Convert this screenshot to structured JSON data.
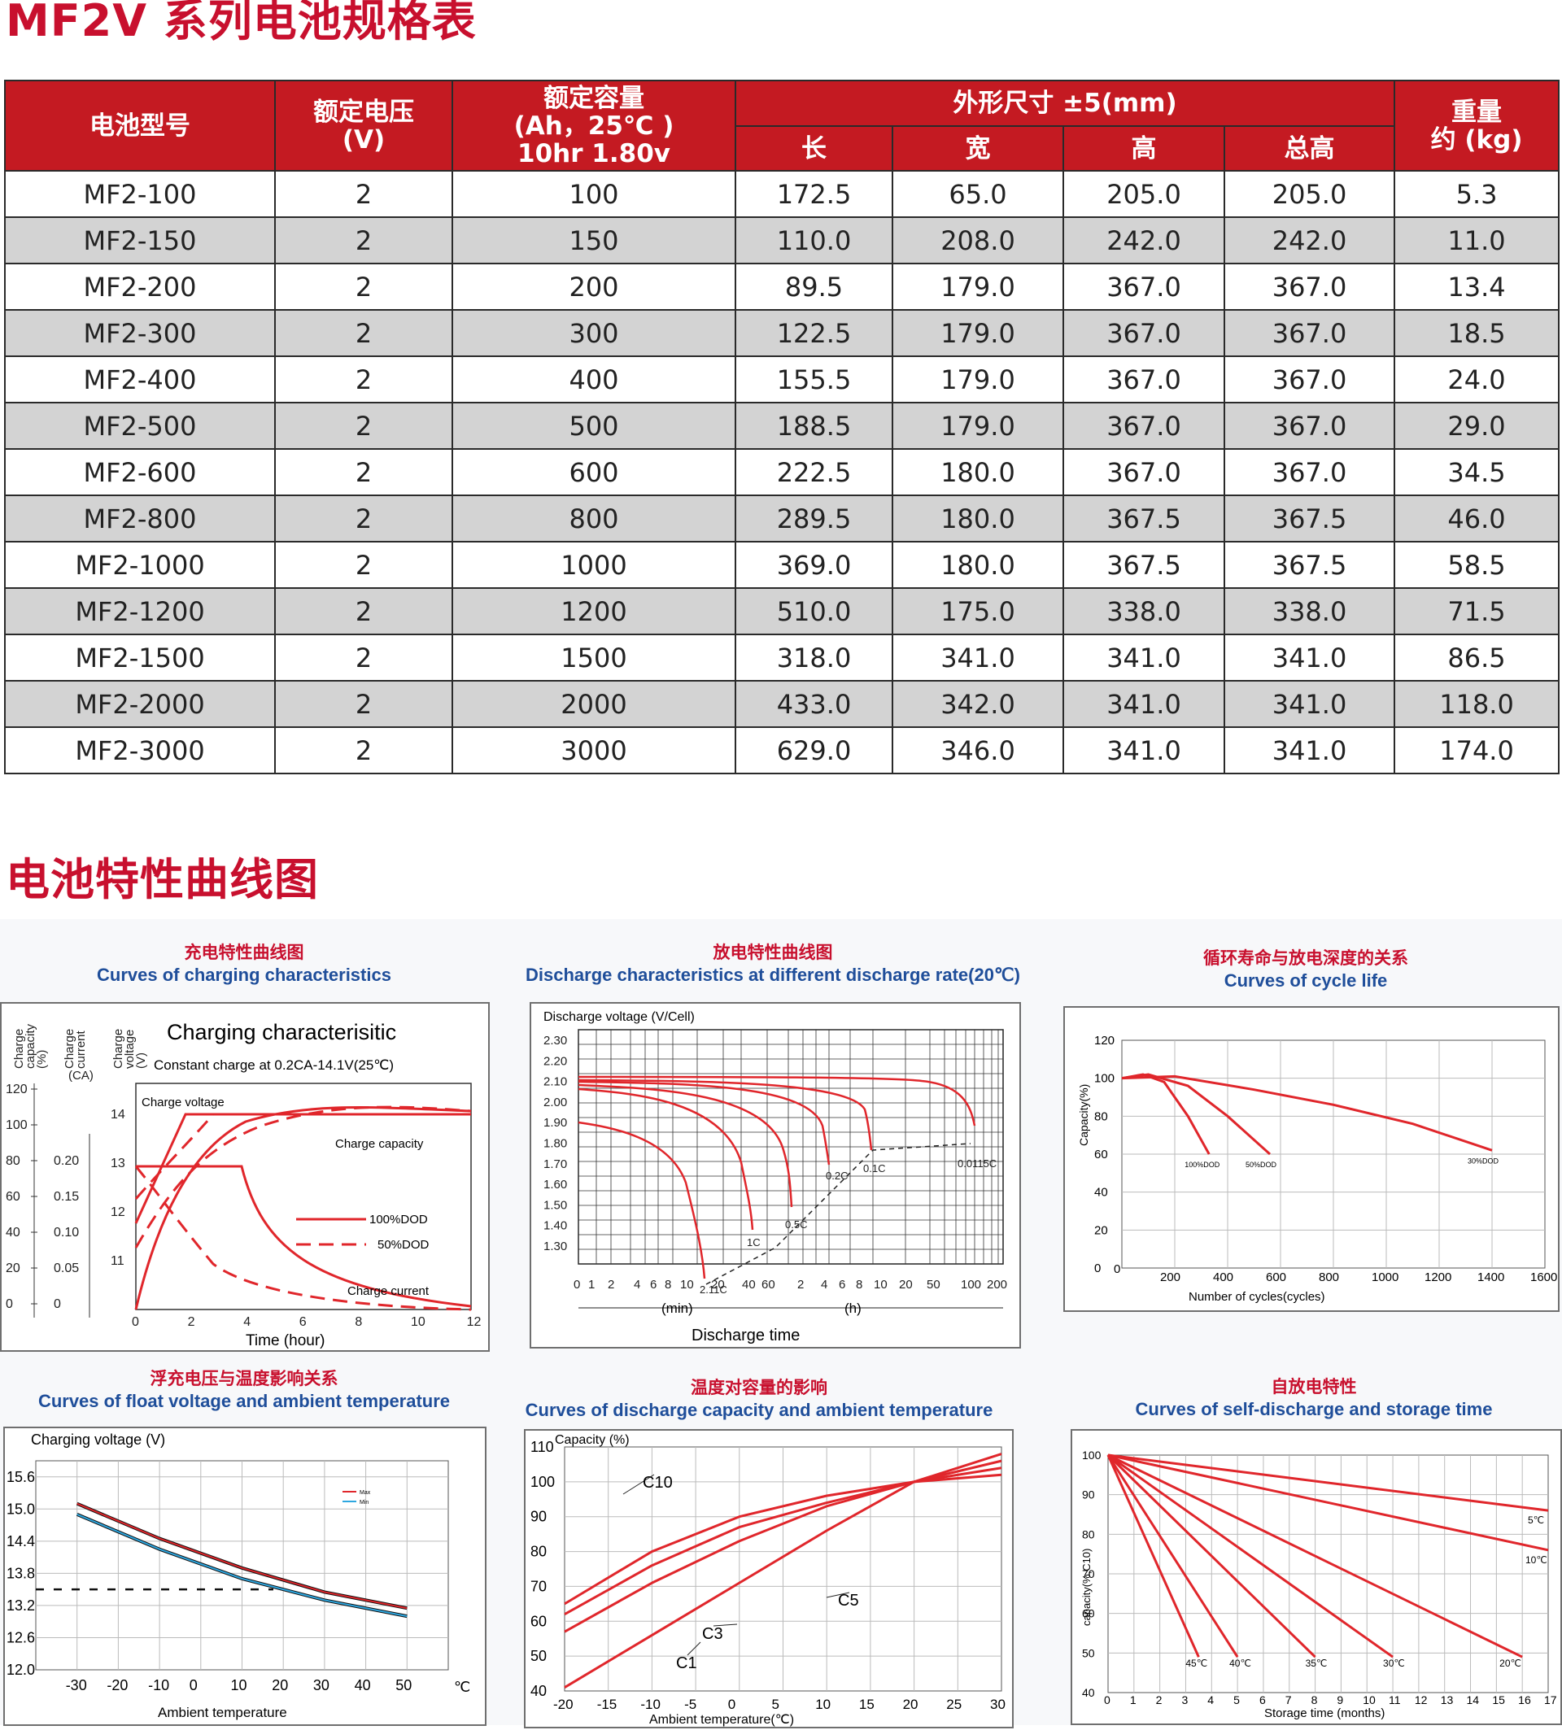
{
  "title": "MF2V 系列电池规格表",
  "table": {
    "headers": {
      "model": "电池型号",
      "voltage_1": "额定电压",
      "voltage_2": "(V)",
      "capacity_1": "额定容量",
      "capacity_2": "(Ah，25℃ )",
      "capacity_3": "10hr 1.80v",
      "dims": "外形尺寸 ±5(mm)",
      "len": "长",
      "wid": "宽",
      "hei": "高",
      "tot": "总高",
      "weight_1": "重量",
      "weight_2": "约 (kg)"
    },
    "rows": [
      [
        "MF2-100",
        "2",
        "100",
        "172.5",
        "65.0",
        "205.0",
        "205.0",
        "5.3"
      ],
      [
        "MF2-150",
        "2",
        "150",
        "110.0",
        "208.0",
        "242.0",
        "242.0",
        "11.0"
      ],
      [
        "MF2-200",
        "2",
        "200",
        "89.5",
        "179.0",
        "367.0",
        "367.0",
        "13.4"
      ],
      [
        "MF2-300",
        "2",
        "300",
        "122.5",
        "179.0",
        "367.0",
        "367.0",
        "18.5"
      ],
      [
        "MF2-400",
        "2",
        "400",
        "155.5",
        "179.0",
        "367.0",
        "367.0",
        "24.0"
      ],
      [
        "MF2-500",
        "2",
        "500",
        "188.5",
        "179.0",
        "367.0",
        "367.0",
        "29.0"
      ],
      [
        "MF2-600",
        "2",
        "600",
        "222.5",
        "180.0",
        "367.0",
        "367.0",
        "34.5"
      ],
      [
        "MF2-800",
        "2",
        "800",
        "289.5",
        "180.0",
        "367.5",
        "367.5",
        "46.0"
      ],
      [
        "MF2-1000",
        "2",
        "1000",
        "369.0",
        "180.0",
        "367.5",
        "367.5",
        "58.5"
      ],
      [
        "MF2-1200",
        "2",
        "1200",
        "510.0",
        "175.0",
        "338.0",
        "338.0",
        "71.5"
      ],
      [
        "MF2-1500",
        "2",
        "1500",
        "318.0",
        "341.0",
        "341.0",
        "341.0",
        "86.5"
      ],
      [
        "MF2-2000",
        "2",
        "2000",
        "433.0",
        "342.0",
        "341.0",
        "341.0",
        "118.0"
      ],
      [
        "MF2-3000",
        "2",
        "3000",
        "629.0",
        "346.0",
        "341.0",
        "341.0",
        "174.0"
      ]
    ]
  },
  "section2_title": "电池特性曲线图",
  "colors": {
    "accent": "#c8102e",
    "header_bg": "#c41a22",
    "stripe": "#d3d3d3",
    "curve": "#e0262b",
    "title_blue": "#1f4e9a"
  },
  "panels": {
    "p1": {
      "cn": "充电特性曲线图",
      "en": "Curves of charging characteristics",
      "inner_title": "Charging characterisitic",
      "subtitle": "Constant charge at 0.2CA-14.1V(25℃)",
      "axis_cap_1": "Charge",
      "axis_cap_2": "capacity",
      "axis_cap_3": "(%)",
      "axis_cur_1": "Charge",
      "axis_cur_2": "current",
      "axis_cur_3": "(CA)",
      "axis_vol_1": "Charge",
      "axis_vol_2": "voltage",
      "axis_vol_3": "(V)",
      "label_voltage": "Charge voltage",
      "label_capacity": "Charge capacity",
      "label_current": "Charge current",
      "legend_100": "100%DOD",
      "legend_50": "50%DOD",
      "xlabel": "Time (hour)",
      "xticks": [
        "0",
        "2",
        "4",
        "6",
        "8",
        "10",
        "12"
      ],
      "cap_ticks": [
        "120",
        "100",
        "80",
        "60",
        "40",
        "20",
        "0"
      ],
      "cur_ticks": [
        "0.20",
        "0.15",
        "0.10",
        "0.05",
        "0"
      ],
      "vol_ticks": [
        "14",
        "13",
        "12",
        "11"
      ]
    },
    "p2": {
      "cn": "放电特性曲线图",
      "en": "Discharge characteristics at different discharge rate(20℃)",
      "ylabel": "Discharge voltage (V/Cell)",
      "yticks": [
        "2.30",
        "2.20",
        "2.10",
        "2.00",
        "1.90",
        "1.80",
        "1.70",
        "1.60",
        "1.50",
        "1.40",
        "1.30"
      ],
      "xticks": [
        "0",
        "1",
        "2",
        "4",
        "6",
        "8",
        "10",
        "20",
        "40",
        "60",
        "2",
        "4",
        "6",
        "8",
        "10",
        "20",
        "50",
        "100",
        "200"
      ],
      "unit_min": "(min)",
      "unit_h": "(h)",
      "rates": [
        "2.11C",
        "1C",
        "0.5C",
        "0.2C",
        "0.1C",
        "0.0115C"
      ],
      "xlabel": "Discharge time"
    },
    "p3": {
      "cn": "循环寿命与放电深度的关系",
      "en": "Curves of cycle life",
      "ylabel": "Capacity(%)",
      "yticks": [
        "120",
        "100",
        "80",
        "60",
        "40",
        "20",
        "0"
      ],
      "xticks": [
        "200",
        "400",
        "600",
        "800",
        "1000",
        "1200",
        "1400",
        "1600"
      ],
      "labels": [
        "100%DOD",
        "50%DOD",
        "30%DOD"
      ],
      "xlabel": "Number of cycles(cycles)"
    },
    "p4": {
      "cn": "浮充电压与温度影响关系",
      "en": "Curves of float voltage and ambient temperature",
      "ylabel": "Charging voltage (V)",
      "yticks": [
        "15.6",
        "15.0",
        "14.4",
        "13.8",
        "13.2",
        "12.6",
        "12.0"
      ],
      "xticks": [
        "-30",
        "-20",
        "-10",
        "0",
        "10",
        "20",
        "30",
        "40",
        "50"
      ],
      "unit": "℃",
      "legend": [
        "Max",
        "Min"
      ],
      "xlabel": "Ambient temperature"
    },
    "p5": {
      "cn": "温度对容量的影响",
      "en": "Curves of discharge capacity and ambient temperature",
      "ylabel": "Capacity (%)",
      "yticks": [
        "110",
        "100",
        "90",
        "80",
        "70",
        "60",
        "50",
        "40"
      ],
      "xticks": [
        "-20",
        "-15",
        "-10",
        "-5",
        "0",
        "5",
        "10",
        "15",
        "20",
        "25",
        "30"
      ],
      "labels": [
        "C10",
        "C5",
        "C3",
        "C1"
      ],
      "xlabel": "Ambient temperature(℃)"
    },
    "p6": {
      "cn": "自放电特性",
      "en": "Curves of self-discharge and storage time",
      "ylabel": "capacity(%,C10)",
      "yticks": [
        "100",
        "90",
        "80",
        "70",
        "60",
        "50",
        "40"
      ],
      "xticks": [
        "0",
        "1",
        "2",
        "3",
        "4",
        "5",
        "6",
        "7",
        "8",
        "9",
        "10",
        "11",
        "12",
        "13",
        "14",
        "15",
        "16",
        "17"
      ],
      "labels": [
        "5℃",
        "10℃",
        "20℃",
        "30℃",
        "35℃",
        "40℃",
        "45℃"
      ],
      "xlabel": "Storage time (months)"
    }
  },
  "chart_data": [
    {
      "type": "line",
      "title": "Curves of cycle life",
      "xlabel": "Number of cycles(cycles)",
      "ylabel": "Capacity(%)",
      "xlim": [
        0,
        1600
      ],
      "ylim": [
        0,
        120
      ],
      "series": [
        {
          "name": "100%DOD",
          "x": [
            0,
            80,
            160,
            250,
            330
          ],
          "y": [
            100,
            102,
            98,
            80,
            60
          ]
        },
        {
          "name": "50%DOD",
          "x": [
            0,
            100,
            250,
            400,
            560
          ],
          "y": [
            100,
            102,
            96,
            80,
            60
          ]
        },
        {
          "name": "30%DOD",
          "x": [
            0,
            200,
            500,
            800,
            1100,
            1400
          ],
          "y": [
            100,
            101,
            94,
            86,
            76,
            62
          ]
        }
      ]
    },
    {
      "type": "line",
      "title": "Curves of discharge capacity and ambient temperature",
      "xlabel": "Ambient temperature(℃)",
      "ylabel": "Capacity (%)",
      "xlim": [
        -20,
        30
      ],
      "ylim": [
        40,
        110
      ],
      "series": [
        {
          "name": "C10",
          "x": [
            -20,
            -10,
            0,
            10,
            20,
            30
          ],
          "y": [
            65,
            80,
            90,
            96,
            100,
            102
          ]
        },
        {
          "name": "C5",
          "x": [
            -20,
            -10,
            0,
            10,
            20,
            30
          ],
          "y": [
            62,
            76,
            87,
            94,
            100,
            104
          ]
        },
        {
          "name": "C3",
          "x": [
            -20,
            -10,
            0,
            10,
            20,
            30
          ],
          "y": [
            57,
            71,
            83,
            93,
            100,
            106
          ]
        },
        {
          "name": "C1",
          "x": [
            -20,
            -10,
            0,
            10,
            20,
            30
          ],
          "y": [
            41,
            56,
            71,
            86,
            100,
            108
          ]
        }
      ]
    },
    {
      "type": "line",
      "title": "Curves of self-discharge and storage time",
      "xlabel": "Storage time (months)",
      "ylabel": "capacity(%,C10)",
      "xlim": [
        0,
        17
      ],
      "ylim": [
        40,
        100
      ],
      "series": [
        {
          "name": "5℃",
          "x": [
            0,
            17
          ],
          "y": [
            100,
            86
          ]
        },
        {
          "name": "10℃",
          "x": [
            0,
            17
          ],
          "y": [
            100,
            76
          ]
        },
        {
          "name": "20℃",
          "x": [
            0,
            16
          ],
          "y": [
            100,
            49
          ]
        },
        {
          "name": "30℃",
          "x": [
            0,
            11
          ],
          "y": [
            100,
            49
          ]
        },
        {
          "name": "35℃",
          "x": [
            0,
            8
          ],
          "y": [
            100,
            49
          ]
        },
        {
          "name": "40℃",
          "x": [
            0,
            5
          ],
          "y": [
            100,
            49
          ]
        },
        {
          "name": "45℃",
          "x": [
            0,
            3.5
          ],
          "y": [
            100,
            49
          ]
        }
      ]
    },
    {
      "type": "line",
      "title": "Curves of float voltage and ambient temperature",
      "xlabel": "Ambient temperature",
      "ylabel": "Charging voltage (V)",
      "xlim": [
        -35,
        55
      ],
      "ylim": [
        12.0,
        15.9
      ],
      "series": [
        {
          "name": "Max",
          "x": [
            -30,
            -10,
            10,
            30,
            50
          ],
          "y": [
            15.1,
            14.45,
            13.9,
            13.45,
            13.15
          ]
        },
        {
          "name": "Min",
          "x": [
            -30,
            -10,
            10,
            30,
            50
          ],
          "y": [
            14.9,
            14.25,
            13.7,
            13.3,
            13.0
          ]
        }
      ]
    }
  ]
}
